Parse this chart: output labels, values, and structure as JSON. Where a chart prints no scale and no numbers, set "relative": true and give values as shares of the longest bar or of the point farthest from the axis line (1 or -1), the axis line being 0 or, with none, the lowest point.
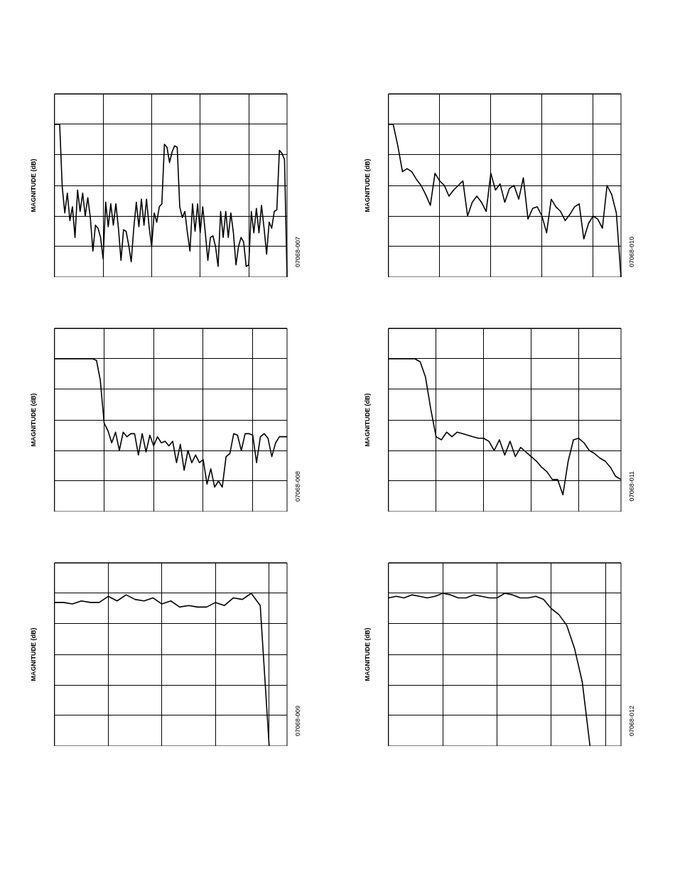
{
  "chart_data": [
    {
      "type": "line",
      "ylabel": "MAGNITUDE (dB)",
      "relative": true,
      "grid": true,
      "tick_labels": false,
      "color": "#000000",
      "annotations": [
        "07068-007"
      ],
      "categories": [
        null,
        null,
        null,
        null,
        null,
        null,
        null,
        null,
        null,
        null,
        null,
        null,
        null,
        null,
        null,
        null,
        null,
        null,
        null,
        null,
        null,
        null,
        null,
        null,
        null,
        null,
        null,
        null,
        null,
        null,
        null,
        null,
        null,
        null,
        null,
        null,
        null,
        null,
        null,
        null,
        null,
        null,
        null,
        null,
        null,
        null,
        null,
        null,
        null,
        null,
        null,
        null,
        null,
        null,
        null,
        null,
        null,
        null,
        null,
        null,
        null,
        null,
        null,
        null,
        null,
        null,
        null,
        null,
        null,
        null,
        null,
        null,
        null,
        null,
        null,
        null,
        null,
        null,
        null,
        null,
        null,
        null,
        null,
        null,
        null,
        null,
        null,
        null,
        null,
        null,
        null,
        null
      ],
      "values": [
        1.0,
        1.0,
        1.0,
        0.59,
        0.42,
        0.55,
        0.37,
        0.46,
        0.26,
        0.57,
        0.43,
        0.55,
        0.4,
        0.52,
        0.39,
        0.17,
        0.34,
        0.32,
        0.26,
        0.12,
        0.49,
        0.33,
        0.48,
        0.34,
        0.48,
        0.32,
        0.11,
        0.31,
        0.3,
        0.21,
        0.1,
        0.32,
        0.49,
        0.33,
        0.51,
        0.34,
        0.51,
        0.33,
        0.2,
        0.42,
        0.36,
        0.46,
        0.48,
        0.87,
        0.85,
        0.75,
        0.82,
        0.86,
        0.85,
        0.46,
        0.39,
        0.43,
        0.29,
        0.17,
        0.48,
        0.3,
        0.48,
        0.29,
        0.46,
        0.29,
        0.11,
        0.26,
        0.27,
        0.2,
        0.07,
        0.43,
        0.26,
        0.43,
        0.26,
        0.42,
        0.29,
        0.08,
        0.2,
        0.26,
        0.23,
        0.07,
        0.08,
        0.43,
        0.29,
        0.45,
        0.29,
        0.47,
        0.32,
        0.15,
        0.36,
        0.32,
        0.43,
        0.44,
        0.83,
        0.81,
        0.77,
        0.0
      ]
    },
    {
      "type": "line",
      "ylabel": "MAGNITUDE (dB)",
      "relative": true,
      "grid": true,
      "tick_labels": false,
      "color": "#000000",
      "annotations": [
        "07068-010"
      ],
      "categories": [
        null,
        null,
        null,
        null,
        null,
        null,
        null,
        null,
        null,
        null,
        null,
        null,
        null,
        null,
        null,
        null,
        null,
        null,
        null,
        null,
        null,
        null,
        null,
        null,
        null,
        null,
        null,
        null,
        null,
        null,
        null,
        null,
        null,
        null,
        null,
        null,
        null,
        null,
        null,
        null,
        null,
        null,
        null,
        null,
        null,
        null,
        null,
        null,
        null,
        null,
        null
      ],
      "values": [
        1.0,
        1.0,
        0.86,
        0.69,
        0.71,
        0.69,
        0.64,
        0.6,
        0.54,
        0.47,
        0.68,
        0.63,
        0.6,
        0.53,
        0.57,
        0.6,
        0.63,
        0.4,
        0.49,
        0.53,
        0.49,
        0.43,
        0.68,
        0.57,
        0.61,
        0.49,
        0.58,
        0.6,
        0.51,
        0.65,
        0.38,
        0.45,
        0.46,
        0.4,
        0.29,
        0.51,
        0.46,
        0.43,
        0.37,
        0.41,
        0.46,
        0.48,
        0.25,
        0.35,
        0.4,
        0.38,
        0.32,
        0.6,
        0.54,
        0.42,
        0.0
      ]
    },
    {
      "type": "line",
      "ylabel": "MAGNITUDE (dB)",
      "relative": true,
      "grid": true,
      "tick_labels": false,
      "color": "#000000",
      "annotations": [
        "07068-008"
      ],
      "categories": [
        null,
        null,
        null,
        null,
        null,
        null,
        null,
        null,
        null,
        null,
        null,
        null,
        null,
        null,
        null,
        null,
        null,
        null,
        null,
        null,
        null,
        null,
        null,
        null,
        null,
        null,
        null,
        null,
        null,
        null,
        null,
        null,
        null,
        null,
        null,
        null,
        null,
        null,
        null,
        null,
        null,
        null,
        null,
        null,
        null,
        null,
        null,
        null,
        null,
        null,
        null,
        null,
        null,
        null,
        null,
        null,
        null,
        null,
        null,
        null,
        null,
        null
      ],
      "values": [
        1.0,
        1.0,
        1.0,
        1.0,
        1.0,
        1.0,
        1.0,
        1.0,
        1.0,
        1.0,
        1.0,
        0.99,
        0.86,
        0.58,
        0.53,
        0.45,
        0.52,
        0.4,
        0.52,
        0.49,
        0.51,
        0.51,
        0.37,
        0.51,
        0.39,
        0.5,
        0.43,
        0.49,
        0.45,
        0.46,
        0.43,
        0.46,
        0.32,
        0.44,
        0.27,
        0.4,
        0.32,
        0.37,
        0.32,
        0.34,
        0.18,
        0.28,
        0.16,
        0.2,
        0.16,
        0.36,
        0.38,
        0.51,
        0.5,
        0.4,
        0.51,
        0.51,
        0.5,
        0.32,
        0.49,
        0.51,
        0.48,
        0.36,
        0.45,
        0.49,
        0.49,
        0.49
      ]
    },
    {
      "type": "line",
      "ylabel": "MAGNITUDE (dB)",
      "relative": true,
      "grid": true,
      "tick_labels": false,
      "color": "#000000",
      "annotations": [
        "07068-011"
      ],
      "categories": [
        null,
        null,
        null,
        null,
        null,
        null,
        null,
        null,
        null,
        null,
        null,
        null,
        null,
        null,
        null,
        null,
        null,
        null,
        null,
        null,
        null,
        null,
        null,
        null,
        null,
        null,
        null,
        null,
        null,
        null,
        null,
        null,
        null,
        null,
        null,
        null,
        null,
        null,
        null,
        null,
        null,
        null,
        null,
        null,
        null
      ],
      "values": [
        1.0,
        1.0,
        1.0,
        1.0,
        1.0,
        1.0,
        0.98,
        0.88,
        0.67,
        0.49,
        0.47,
        0.52,
        0.49,
        0.52,
        0.51,
        0.5,
        0.49,
        0.48,
        0.48,
        0.46,
        0.4,
        0.47,
        0.37,
        0.46,
        0.36,
        0.42,
        0.39,
        0.36,
        0.33,
        0.29,
        0.26,
        0.21,
        0.21,
        0.11,
        0.33,
        0.47,
        0.48,
        0.45,
        0.4,
        0.38,
        0.35,
        0.33,
        0.29,
        0.23,
        0.21
      ]
    },
    {
      "type": "line",
      "ylabel": "MAGNITUDE (dB)",
      "relative": true,
      "grid": true,
      "tick_labels": false,
      "color": "#000000",
      "annotations": [
        "07068-009"
      ],
      "categories": [
        null,
        null,
        null,
        null,
        null,
        null,
        null,
        null,
        null,
        null,
        null,
        null,
        null,
        null,
        null,
        null,
        null,
        null,
        null,
        null,
        null,
        null,
        null,
        null,
        null,
        null,
        null
      ],
      "values": [
        0.94,
        0.94,
        0.93,
        0.95,
        0.94,
        0.94,
        0.98,
        0.95,
        0.99,
        0.96,
        0.95,
        0.97,
        0.93,
        0.95,
        0.91,
        0.92,
        0.91,
        0.91,
        0.94,
        0.92,
        0.97,
        0.96,
        1.0,
        0.92,
        0.0,
        null,
        null
      ]
    },
    {
      "type": "line",
      "ylabel": "MAGNITUDE (dB)",
      "relative": true,
      "grid": true,
      "tick_labels": false,
      "color": "#000000",
      "annotations": [
        "07068-012"
      ],
      "categories": [
        null,
        null,
        null,
        null,
        null,
        null,
        null,
        null,
        null,
        null,
        null,
        null,
        null,
        null,
        null,
        null,
        null,
        null,
        null,
        null,
        null,
        null,
        null,
        null,
        null,
        null,
        null,
        null,
        null,
        null,
        null
      ],
      "values": [
        0.97,
        0.98,
        0.97,
        0.99,
        0.98,
        0.97,
        0.98,
        1.0,
        0.99,
        0.97,
        0.97,
        0.99,
        0.98,
        0.97,
        0.97,
        1.0,
        0.99,
        0.97,
        0.97,
        0.98,
        0.96,
        0.9,
        0.86,
        0.79,
        0.64,
        0.42,
        0.0,
        null,
        null,
        null,
        null
      ]
    }
  ]
}
